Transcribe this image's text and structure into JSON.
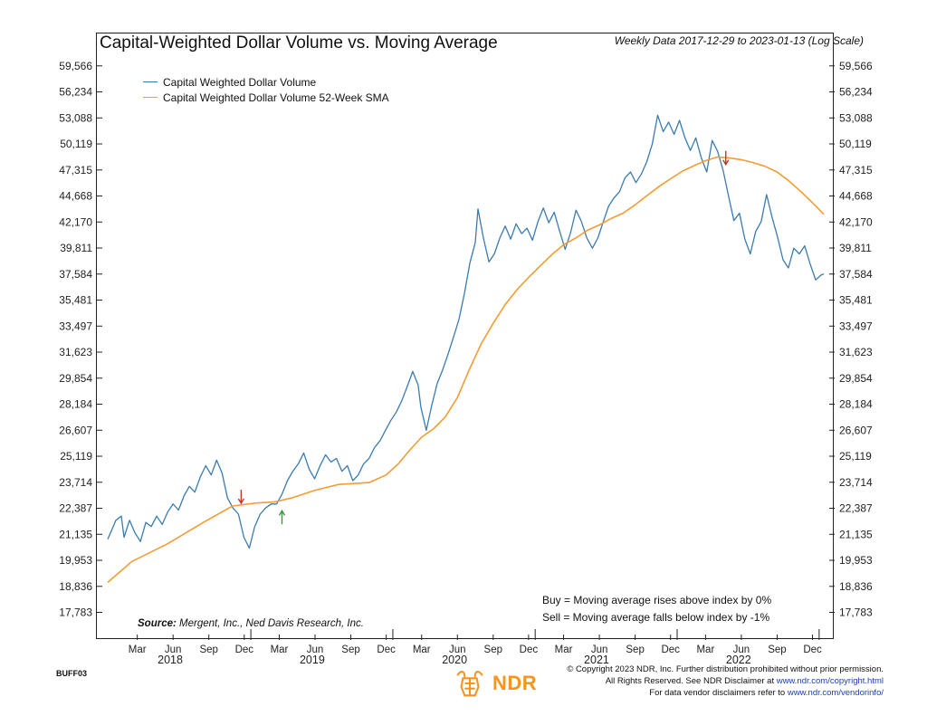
{
  "title": "Capital-Weighted Dollar Volume vs. Moving Average",
  "subtitle": "Weekly Data 2017-12-29 to 2023-01-13 (Log Scale)",
  "legend": [
    {
      "label": "Capital Weighted Dollar Volume",
      "color": "#3a7bb0"
    },
    {
      "label": "Capital Weighted Dollar Volume 52-Week SMA",
      "color": "#f39c32"
    }
  ],
  "rules": {
    "buy": "Buy = Moving average rises above index by 0%",
    "sell": "Sell = Moving average falls below index by -1%"
  },
  "source": {
    "label": "Source:",
    "text": "Mergent, Inc., Ned Davis Research, Inc."
  },
  "chart_code": "BUFF03",
  "copyright": {
    "line1": "© Copyright 2023 NDR, Inc. Further distribution prohibited without prior permission.",
    "line2_prefix": "All Rights Reserved. See NDR Disclaimer at",
    "line2_link": "www.ndr.com/copyright.html",
    "line3_prefix": "For data vendor disclaimers refer to",
    "line3_link": "www.ndr.com/vendorinfo/"
  },
  "logo_text": "NDR",
  "logo_icon": "bull-bear-icon",
  "chart_data": {
    "type": "line",
    "scale": "log",
    "y_ticks": [
      17783,
      18836,
      19953,
      21135,
      22387,
      23714,
      25119,
      26607,
      28184,
      29854,
      31623,
      33497,
      35481,
      37584,
      39811,
      42170,
      44668,
      47315,
      50119,
      53088,
      56234,
      59566
    ],
    "y_tick_labels": [
      "17,783",
      "18,836",
      "19,953",
      "21,135",
      "22,387",
      "23,714",
      "25,119",
      "26,607",
      "28,184",
      "29,854",
      "31,623",
      "33,497",
      "35,481",
      "37,584",
      "39,811",
      "42,170",
      "44,668",
      "47,315",
      "50,119",
      "53,088",
      "56,234",
      "59,566"
    ],
    "ylim": [
      17000,
      60500
    ],
    "xlim": [
      "2017-12-29",
      "2023-01-13"
    ],
    "x_ticks": [
      {
        "label": "Mar",
        "date": "2018-03-15"
      },
      {
        "label": "Jun",
        "date": "2018-06-15"
      },
      {
        "label": "Sep",
        "date": "2018-09-15"
      },
      {
        "label": "Dec",
        "date": "2018-12-15"
      },
      {
        "label": "Mar",
        "date": "2019-03-15"
      },
      {
        "label": "Jun",
        "date": "2019-06-15"
      },
      {
        "label": "Sep",
        "date": "2019-09-15"
      },
      {
        "label": "Dec",
        "date": "2019-12-15"
      },
      {
        "label": "Mar",
        "date": "2020-03-15"
      },
      {
        "label": "Jun",
        "date": "2020-06-15"
      },
      {
        "label": "Sep",
        "date": "2020-09-15"
      },
      {
        "label": "Dec",
        "date": "2020-12-15"
      },
      {
        "label": "Mar",
        "date": "2021-03-15"
      },
      {
        "label": "Jun",
        "date": "2021-06-15"
      },
      {
        "label": "Sep",
        "date": "2021-09-15"
      },
      {
        "label": "Dec",
        "date": "2021-12-15"
      },
      {
        "label": "Mar",
        "date": "2022-03-15"
      },
      {
        "label": "Jun",
        "date": "2022-06-15"
      },
      {
        "label": "Sep",
        "date": "2022-09-15"
      },
      {
        "label": "Dec",
        "date": "2022-12-15"
      }
    ],
    "x_years": [
      {
        "label": "2018",
        "date": "2018-07-01"
      },
      {
        "label": "2019",
        "date": "2019-07-01"
      },
      {
        "label": "2020",
        "date": "2020-07-01"
      },
      {
        "label": "2021",
        "date": "2021-07-01"
      },
      {
        "label": "2022",
        "date": "2022-07-01"
      }
    ],
    "series": [
      {
        "name": "Capital Weighted Dollar Volume",
        "color": "#3a7bb0",
        "points": [
          [
            "2017-12-29",
            20900
          ],
          [
            "2018-01-19",
            21800
          ],
          [
            "2018-02-02",
            22000
          ],
          [
            "2018-02-09",
            21000
          ],
          [
            "2018-02-23",
            21800
          ],
          [
            "2018-03-09",
            21200
          ],
          [
            "2018-03-23",
            20800
          ],
          [
            "2018-04-06",
            21700
          ],
          [
            "2018-04-20",
            21500
          ],
          [
            "2018-05-04",
            22000
          ],
          [
            "2018-05-18",
            21600
          ],
          [
            "2018-06-01",
            22200
          ],
          [
            "2018-06-15",
            22600
          ],
          [
            "2018-06-29",
            22300
          ],
          [
            "2018-07-13",
            23000
          ],
          [
            "2018-07-27",
            23500
          ],
          [
            "2018-08-10",
            23200
          ],
          [
            "2018-08-24",
            24000
          ],
          [
            "2018-09-07",
            24600
          ],
          [
            "2018-09-21",
            24100
          ],
          [
            "2018-10-05",
            24900
          ],
          [
            "2018-10-19",
            24200
          ],
          [
            "2018-11-02",
            22900
          ],
          [
            "2018-11-16",
            22400
          ],
          [
            "2018-11-30",
            22100
          ],
          [
            "2018-12-14",
            21000
          ],
          [
            "2018-12-28",
            20500
          ],
          [
            "2019-01-11",
            21500
          ],
          [
            "2019-01-25",
            22100
          ],
          [
            "2019-02-08",
            22400
          ],
          [
            "2019-02-22",
            22600
          ],
          [
            "2019-03-08",
            22600
          ],
          [
            "2019-03-22",
            23100
          ],
          [
            "2019-04-05",
            23800
          ],
          [
            "2019-04-19",
            24300
          ],
          [
            "2019-05-03",
            24700
          ],
          [
            "2019-05-17",
            25300
          ],
          [
            "2019-05-31",
            24400
          ],
          [
            "2019-06-14",
            23900
          ],
          [
            "2019-06-28",
            24600
          ],
          [
            "2019-07-12",
            25200
          ],
          [
            "2019-07-26",
            24800
          ],
          [
            "2019-08-09",
            25000
          ],
          [
            "2019-08-23",
            24300
          ],
          [
            "2019-09-06",
            24600
          ],
          [
            "2019-09-20",
            23800
          ],
          [
            "2019-10-04",
            24100
          ],
          [
            "2019-10-18",
            24700
          ],
          [
            "2019-11-01",
            25000
          ],
          [
            "2019-11-15",
            25600
          ],
          [
            "2019-11-29",
            26000
          ],
          [
            "2019-12-13",
            26600
          ],
          [
            "2019-12-27",
            27200
          ],
          [
            "2020-01-10",
            27700
          ],
          [
            "2020-01-24",
            28400
          ],
          [
            "2020-02-07",
            29300
          ],
          [
            "2020-02-21",
            30300
          ],
          [
            "2020-03-06",
            29400
          ],
          [
            "2020-03-13",
            28000
          ],
          [
            "2020-03-27",
            26600
          ],
          [
            "2020-04-10",
            28100
          ],
          [
            "2020-04-24",
            29500
          ],
          [
            "2020-05-08",
            30400
          ],
          [
            "2020-05-22",
            31500
          ],
          [
            "2020-06-05",
            32700
          ],
          [
            "2020-06-19",
            34000
          ],
          [
            "2020-07-03",
            36000
          ],
          [
            "2020-07-17",
            38500
          ],
          [
            "2020-07-31",
            40300
          ],
          [
            "2020-08-07",
            43400
          ],
          [
            "2020-08-21",
            40700
          ],
          [
            "2020-09-04",
            38600
          ],
          [
            "2020-09-18",
            39300
          ],
          [
            "2020-10-02",
            40700
          ],
          [
            "2020-10-16",
            41800
          ],
          [
            "2020-10-30",
            40600
          ],
          [
            "2020-11-13",
            42000
          ],
          [
            "2020-11-27",
            41100
          ],
          [
            "2020-12-11",
            41600
          ],
          [
            "2020-12-25",
            40500
          ],
          [
            "2021-01-08",
            42200
          ],
          [
            "2021-01-22",
            43500
          ],
          [
            "2021-02-05",
            42100
          ],
          [
            "2021-02-19",
            43100
          ],
          [
            "2021-03-05",
            41300
          ],
          [
            "2021-03-19",
            39700
          ],
          [
            "2021-04-02",
            41200
          ],
          [
            "2021-04-16",
            43300
          ],
          [
            "2021-04-30",
            42200
          ],
          [
            "2021-05-14",
            40700
          ],
          [
            "2021-05-28",
            39800
          ],
          [
            "2021-06-11",
            40700
          ],
          [
            "2021-06-25",
            42200
          ],
          [
            "2021-07-09",
            43700
          ],
          [
            "2021-07-23",
            44500
          ],
          [
            "2021-08-06",
            45100
          ],
          [
            "2021-08-20",
            46500
          ],
          [
            "2021-09-03",
            47100
          ],
          [
            "2021-09-17",
            46000
          ],
          [
            "2021-10-01",
            46900
          ],
          [
            "2021-10-15",
            48200
          ],
          [
            "2021-10-29",
            50100
          ],
          [
            "2021-11-12",
            53400
          ],
          [
            "2021-11-26",
            51500
          ],
          [
            "2021-12-10",
            52600
          ],
          [
            "2021-12-24",
            51200
          ],
          [
            "2022-01-07",
            52800
          ],
          [
            "2022-01-21",
            50800
          ],
          [
            "2022-02-04",
            49400
          ],
          [
            "2022-02-18",
            50800
          ],
          [
            "2022-03-04",
            48600
          ],
          [
            "2022-03-18",
            47100
          ],
          [
            "2022-04-01",
            50500
          ],
          [
            "2022-04-15",
            49300
          ],
          [
            "2022-04-29",
            47300
          ],
          [
            "2022-05-13",
            44700
          ],
          [
            "2022-05-27",
            42300
          ],
          [
            "2022-06-10",
            43000
          ],
          [
            "2022-06-24",
            40600
          ],
          [
            "2022-07-08",
            39300
          ],
          [
            "2022-07-22",
            41300
          ],
          [
            "2022-08-05",
            42200
          ],
          [
            "2022-08-19",
            44800
          ],
          [
            "2022-09-02",
            42600
          ],
          [
            "2022-09-16",
            40800
          ],
          [
            "2022-09-30",
            38800
          ],
          [
            "2022-10-14",
            38100
          ],
          [
            "2022-10-28",
            39800
          ],
          [
            "2022-11-11",
            39300
          ],
          [
            "2022-11-25",
            40000
          ],
          [
            "2022-12-09",
            38400
          ],
          [
            "2022-12-23",
            37100
          ],
          [
            "2023-01-06",
            37500
          ],
          [
            "2023-01-13",
            37600
          ]
        ]
      },
      {
        "name": "Capital Weighted Dollar Volume 52-Week SMA",
        "color": "#f39c32",
        "points": [
          [
            "2017-12-29",
            19000
          ],
          [
            "2018-03-01",
            19900
          ],
          [
            "2018-06-01",
            20700
          ],
          [
            "2018-09-01",
            21700
          ],
          [
            "2018-11-15",
            22500
          ],
          [
            "2019-01-15",
            22650
          ],
          [
            "2019-03-01",
            22700
          ],
          [
            "2019-04-15",
            22900
          ],
          [
            "2019-06-15",
            23300
          ],
          [
            "2019-08-15",
            23600
          ],
          [
            "2019-11-01",
            23700
          ],
          [
            "2019-12-15",
            24100
          ],
          [
            "2020-01-15",
            24700
          ],
          [
            "2020-02-15",
            25500
          ],
          [
            "2020-03-15",
            26200
          ],
          [
            "2020-04-15",
            26700
          ],
          [
            "2020-05-15",
            27400
          ],
          [
            "2020-06-15",
            28600
          ],
          [
            "2020-07-15",
            30400
          ],
          [
            "2020-08-15",
            32200
          ],
          [
            "2020-09-15",
            33700
          ],
          [
            "2020-10-15",
            35100
          ],
          [
            "2020-11-15",
            36300
          ],
          [
            "2020-12-15",
            37300
          ],
          [
            "2021-01-15",
            38300
          ],
          [
            "2021-02-15",
            39300
          ],
          [
            "2021-03-15",
            40100
          ],
          [
            "2021-04-15",
            40700
          ],
          [
            "2021-05-15",
            41400
          ],
          [
            "2021-06-15",
            41900
          ],
          [
            "2021-07-15",
            42500
          ],
          [
            "2021-08-15",
            43000
          ],
          [
            "2021-09-15",
            43800
          ],
          [
            "2021-10-15",
            44700
          ],
          [
            "2021-11-15",
            45600
          ],
          [
            "2021-12-15",
            46400
          ],
          [
            "2022-01-15",
            47200
          ],
          [
            "2022-02-15",
            47800
          ],
          [
            "2022-03-15",
            48300
          ],
          [
            "2022-04-15",
            48700
          ],
          [
            "2022-05-15",
            48600
          ],
          [
            "2022-06-15",
            48400
          ],
          [
            "2022-07-15",
            48100
          ],
          [
            "2022-08-15",
            47700
          ],
          [
            "2022-09-15",
            47100
          ],
          [
            "2022-10-15",
            46200
          ],
          [
            "2022-11-15",
            45100
          ],
          [
            "2022-12-15",
            44000
          ],
          [
            "2023-01-13",
            42900
          ]
        ]
      }
    ],
    "signals": [
      {
        "type": "sell",
        "date": "2018-12-07",
        "value": 22500,
        "color": "#c0392b"
      },
      {
        "type": "buy",
        "date": "2019-03-22",
        "value": 22400,
        "color": "#2e9e3e"
      },
      {
        "type": "sell",
        "date": "2022-05-06",
        "value": 47600,
        "color": "#c0392b"
      }
    ]
  }
}
